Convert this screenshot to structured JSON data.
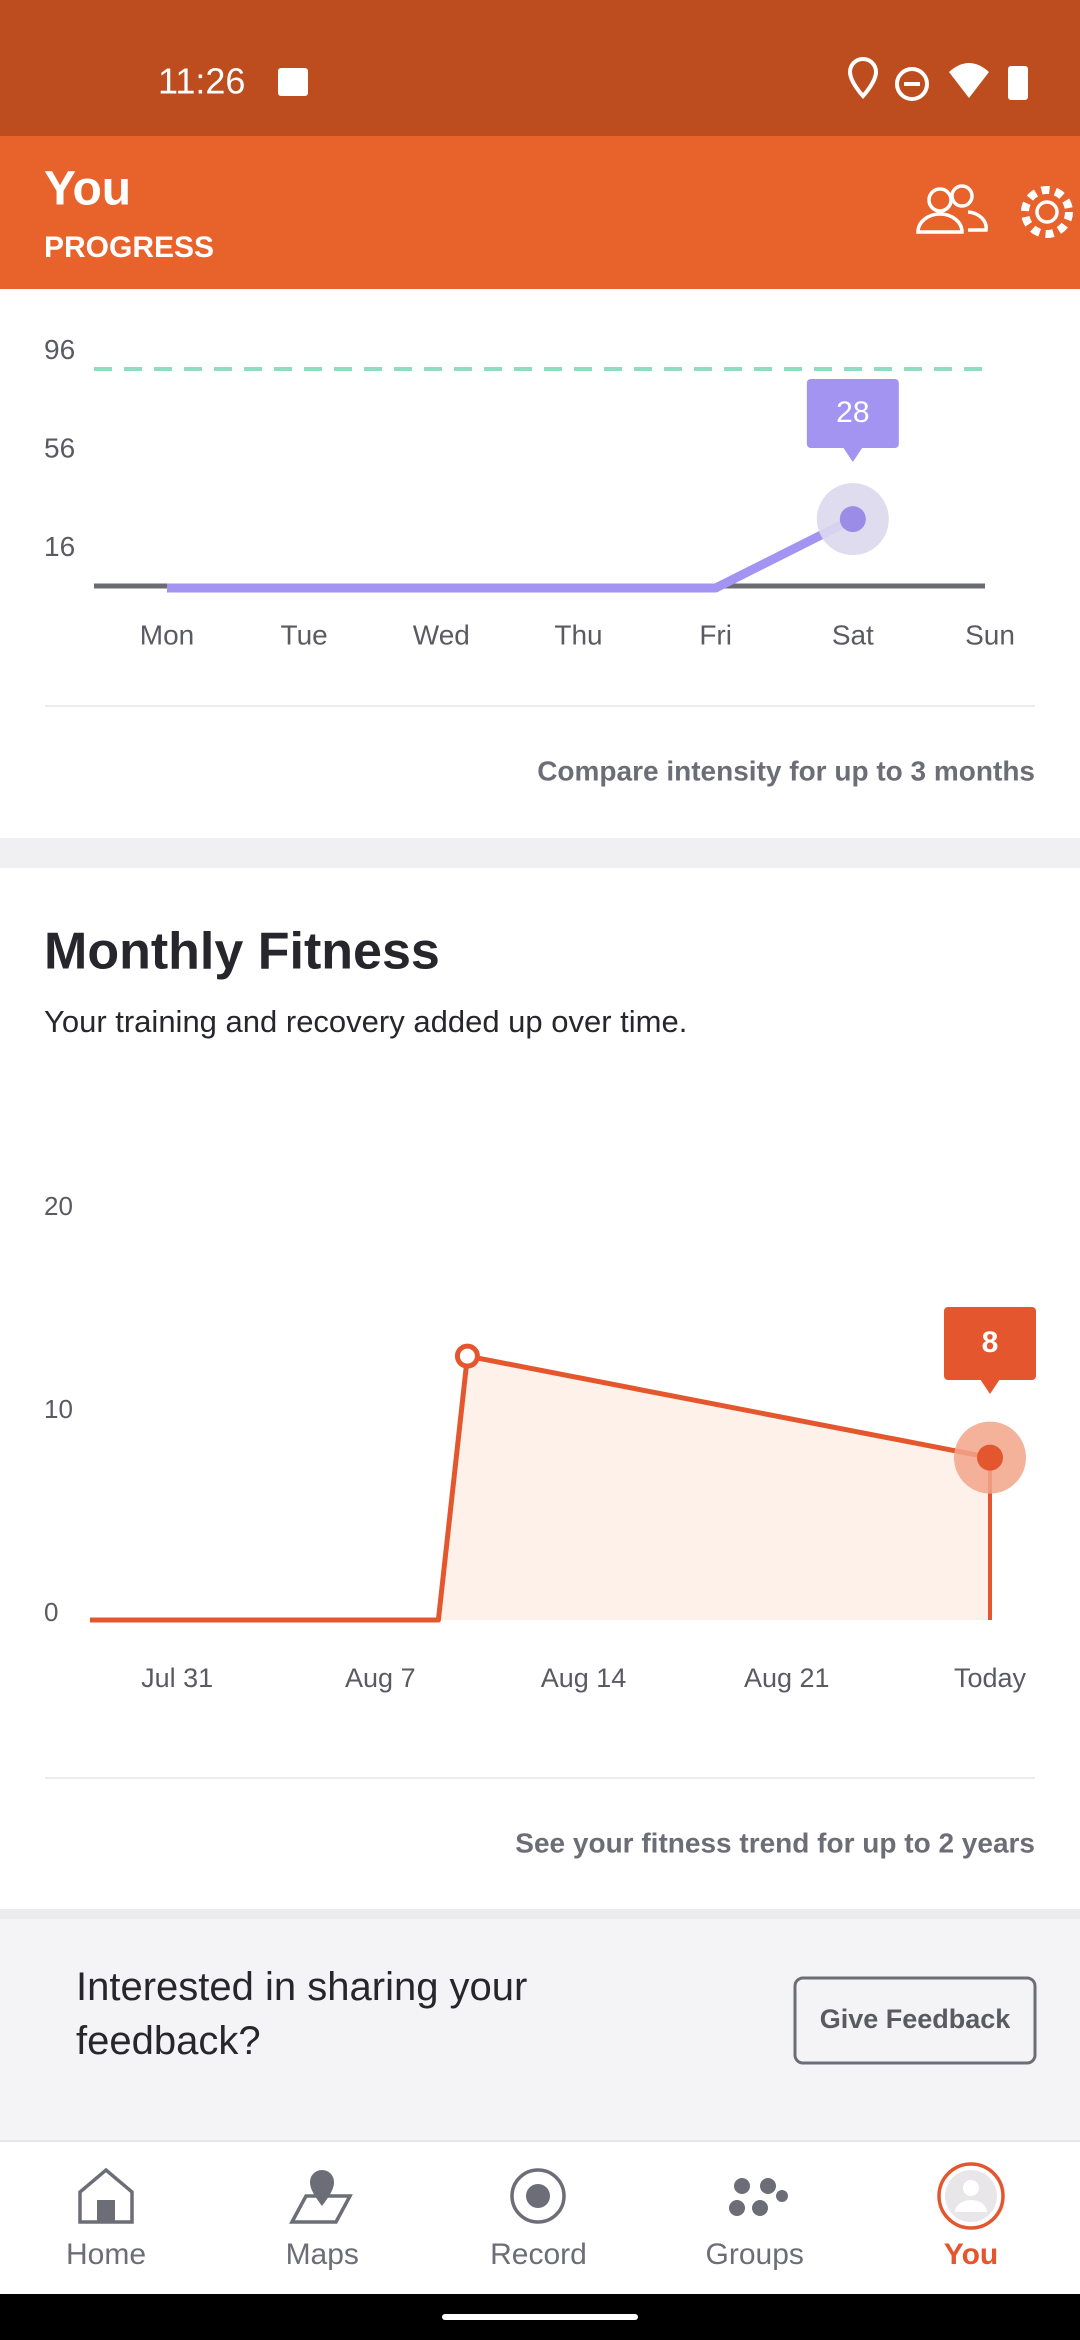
{
  "status_bar": {
    "time": "11:26"
  },
  "header": {
    "title": "You",
    "subtitle": "PROGRESS"
  },
  "intensity_chart": {
    "type": "line",
    "categories": [
      "Mon",
      "Tue",
      "Wed",
      "Thu",
      "Fri",
      "Sat",
      "Sun"
    ],
    "values": [
      0,
      0,
      0,
      0,
      0,
      28,
      null
    ],
    "color": "#a394f2",
    "ylim": [
      0,
      100
    ],
    "yticks": [
      16,
      56,
      96
    ],
    "target_line": 89,
    "target_color": "#8fdcbe"
  },
  "intensity_footer": "Compare intensity for up to 3 months",
  "fitness_section": {
    "title": "Monthly Fitness",
    "subtitle": "Your training and recovery added up over time.",
    "chart": {
      "type": "area",
      "x": [
        -3,
        9,
        10,
        28
      ],
      "values": [
        0,
        0,
        13,
        8
      ],
      "color": "#e4572e",
      "fill": "#fdf1ea",
      "xlim": [
        -3,
        28
      ],
      "xticks": [
        {
          "value": 0,
          "label": "Jul 31"
        },
        {
          "value": 7,
          "label": "Aug 7"
        },
        {
          "value": 14,
          "label": "Aug 14"
        },
        {
          "value": 21,
          "label": "Aug 21"
        },
        {
          "value": 28,
          "label": "Today"
        }
      ],
      "ylim": [
        0,
        20
      ],
      "yticks": [
        0,
        10,
        20
      ]
    },
    "footer": "See your fitness trend for up to 2 years"
  },
  "feedback": {
    "text": "Interested in sharing your feedback?",
    "button": "Give Feedback"
  },
  "nav": {
    "items": [
      "Home",
      "Maps",
      "Record",
      "Groups",
      "You"
    ],
    "active": 4
  }
}
